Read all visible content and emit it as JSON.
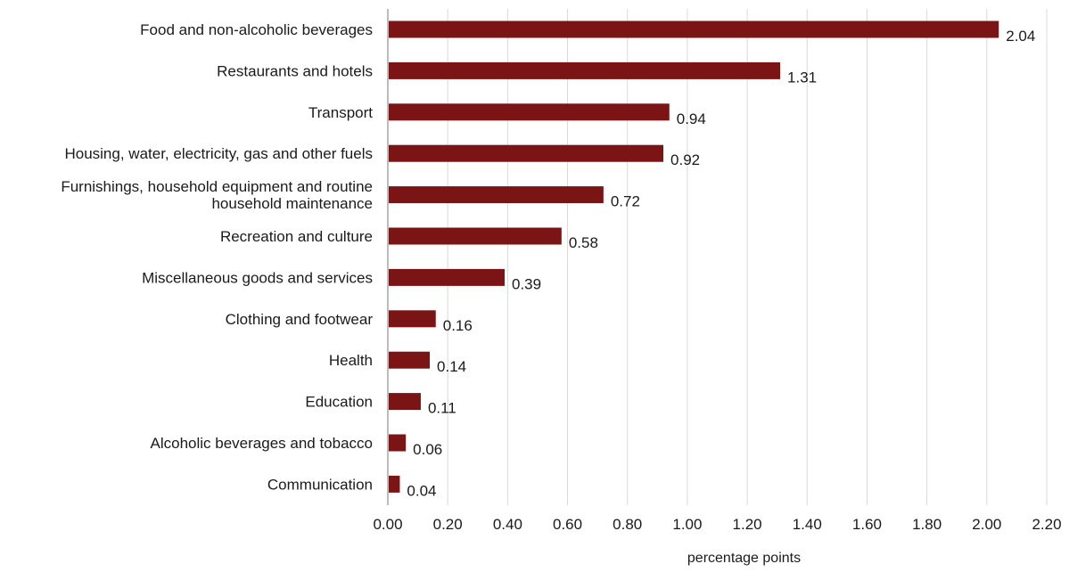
{
  "chart_data": {
    "type": "bar",
    "orientation": "horizontal",
    "categories": [
      [
        "Food and non-alcoholic beverages"
      ],
      [
        "Restaurants and hotels"
      ],
      [
        "Transport"
      ],
      [
        "Housing, water, electricity, gas and other fuels"
      ],
      [
        "Furnishings, household equipment and routine",
        "household maintenance"
      ],
      [
        "Recreation and culture"
      ],
      [
        "Miscellaneous goods and services"
      ],
      [
        "Clothing and footwear"
      ],
      [
        "Health"
      ],
      [
        "Education"
      ],
      [
        "Alcoholic beverages and tobacco"
      ],
      [
        "Communication"
      ]
    ],
    "values": [
      2.04,
      1.31,
      0.94,
      0.92,
      0.72,
      0.58,
      0.39,
      0.16,
      0.14,
      0.11,
      0.06,
      0.04
    ],
    "value_labels": [
      "2.04",
      "1.31",
      "0.94",
      "0.92",
      "0.72",
      "0.58",
      "0.39",
      "0.16",
      "0.14",
      "0.11",
      "0.06",
      "0.04"
    ],
    "xlim": [
      0,
      2.2
    ],
    "xticks": [
      0,
      0.2,
      0.4,
      0.6,
      0.8,
      1.0,
      1.2,
      1.4,
      1.6,
      1.8,
      2.0,
      2.2
    ],
    "xtick_labels": [
      "0.00",
      "0.20",
      "0.40",
      "0.60",
      "0.80",
      "1.00",
      "1.20",
      "1.40",
      "1.60",
      "1.80",
      "2.00",
      "2.20"
    ],
    "xlabel": "percentage points",
    "title": "",
    "grid": "vertical",
    "legend": "none",
    "bar_color": "#7b1414",
    "grid_color": "#d9d9d9",
    "axis_color": "#a6a6a6"
  }
}
